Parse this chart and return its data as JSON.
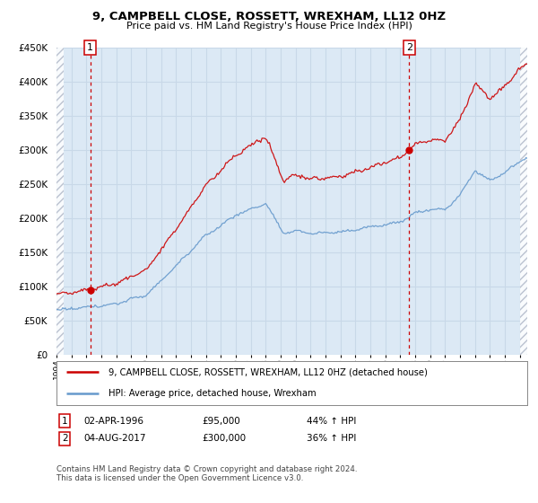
{
  "title": "9, CAMPBELL CLOSE, ROSSETT, WREXHAM, LL12 0HZ",
  "subtitle": "Price paid vs. HM Land Registry's House Price Index (HPI)",
  "ylim": [
    0,
    450000
  ],
  "yticks": [
    0,
    50000,
    100000,
    150000,
    200000,
    250000,
    300000,
    350000,
    400000,
    450000
  ],
  "xlim_start": 1994.0,
  "xlim_end": 2025.5,
  "sale1_date": 1996.25,
  "sale1_price": 95000,
  "sale2_date": 2017.6,
  "sale2_price": 300000,
  "legend1": "9, CAMPBELL CLOSE, ROSSETT, WREXHAM, LL12 0HZ (detached house)",
  "legend2": "HPI: Average price, detached house, Wrexham",
  "footer": "Contains HM Land Registry data © Crown copyright and database right 2024.\nThis data is licensed under the Open Government Licence v3.0.",
  "house_color": "#cc0000",
  "hpi_color": "#6699cc",
  "bg_color": "#dce9f5",
  "grid_color": "#c8d8e8",
  "hatch_color": "#b0b8c8"
}
